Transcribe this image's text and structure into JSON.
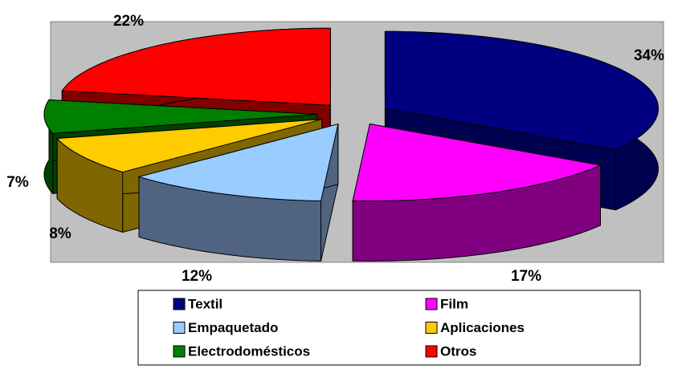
{
  "chart_data": {
    "type": "pie3d",
    "categories": [
      "Textil",
      "Film",
      "Empaquetado",
      "Aplicaciones",
      "Electrodomésticos",
      "Otros"
    ],
    "values": [
      34,
      17,
      12,
      8,
      7,
      22
    ],
    "value_labels": [
      "34%",
      "17%",
      "12%",
      "8%",
      "7%",
      "22%"
    ],
    "colors": [
      "#000080",
      "#ff00ff",
      "#99ccff",
      "#ffcc00",
      "#008000",
      "#ff0000"
    ],
    "side_colors": [
      "#000050",
      "#800080",
      "#506482",
      "#806600",
      "#004000",
      "#800000"
    ],
    "legend": "bottom"
  }
}
